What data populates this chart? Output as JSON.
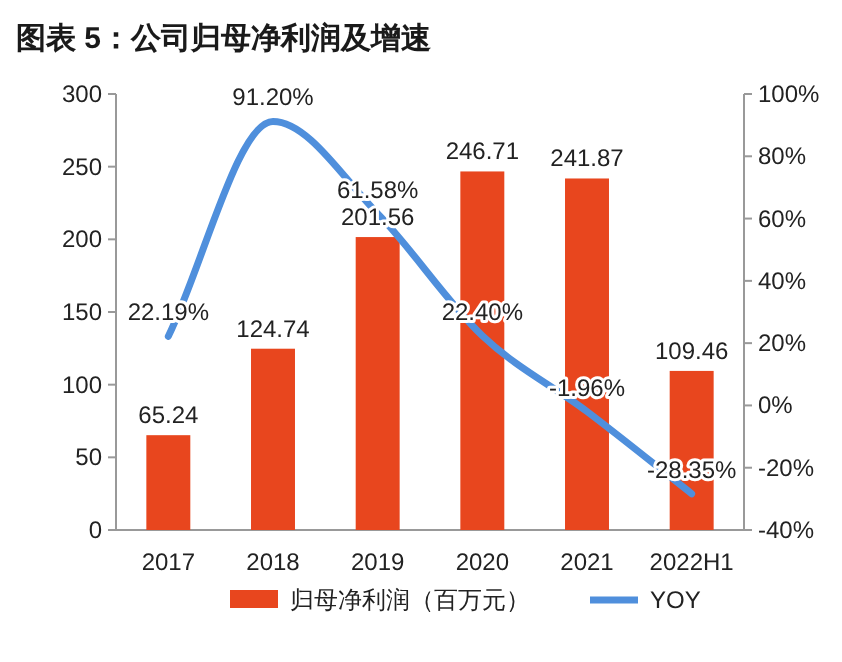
{
  "chart_data": {
    "type": "bar",
    "title": "图表 5：公司归母净利润及增速",
    "categories": [
      "2017",
      "2018",
      "2019",
      "2020",
      "2021",
      "2022H1"
    ],
    "series": [
      {
        "name": "归母净利润（百万元）",
        "color": "#e8461e",
        "values": [
          65.24,
          124.74,
          201.56,
          246.71,
          241.87,
          109.46
        ],
        "value_labels": [
          "65.24",
          "124.74",
          "201.56",
          "246.71",
          "241.87",
          "109.46"
        ]
      },
      {
        "name": "YOY",
        "type": "line",
        "axis": "y2",
        "color": "#4f8fdc",
        "values": [
          22.19,
          91.2,
          61.58,
          22.4,
          -1.96,
          -28.35
        ],
        "value_labels": [
          "22.19%",
          "91.20%",
          "61.58%",
          "22.40%",
          "-1.96%",
          "-28.35%"
        ]
      }
    ],
    "ylim": [
      0,
      300
    ],
    "yticks": [
      0,
      50,
      100,
      150,
      200,
      250,
      300
    ],
    "y2lim": [
      -40,
      100
    ],
    "y2ticks": [
      {
        "value": -40,
        "label": "-40%"
      },
      {
        "value": -20,
        "label": "-20%"
      },
      {
        "value": 0,
        "label": "0%"
      },
      {
        "value": 20,
        "label": "20%"
      },
      {
        "value": 40,
        "label": "40%"
      },
      {
        "value": 60,
        "label": "60%"
      },
      {
        "value": 80,
        "label": "80%"
      },
      {
        "value": 100,
        "label": "100%"
      }
    ],
    "grid": false,
    "legend": "bottom",
    "marker": "none"
  }
}
